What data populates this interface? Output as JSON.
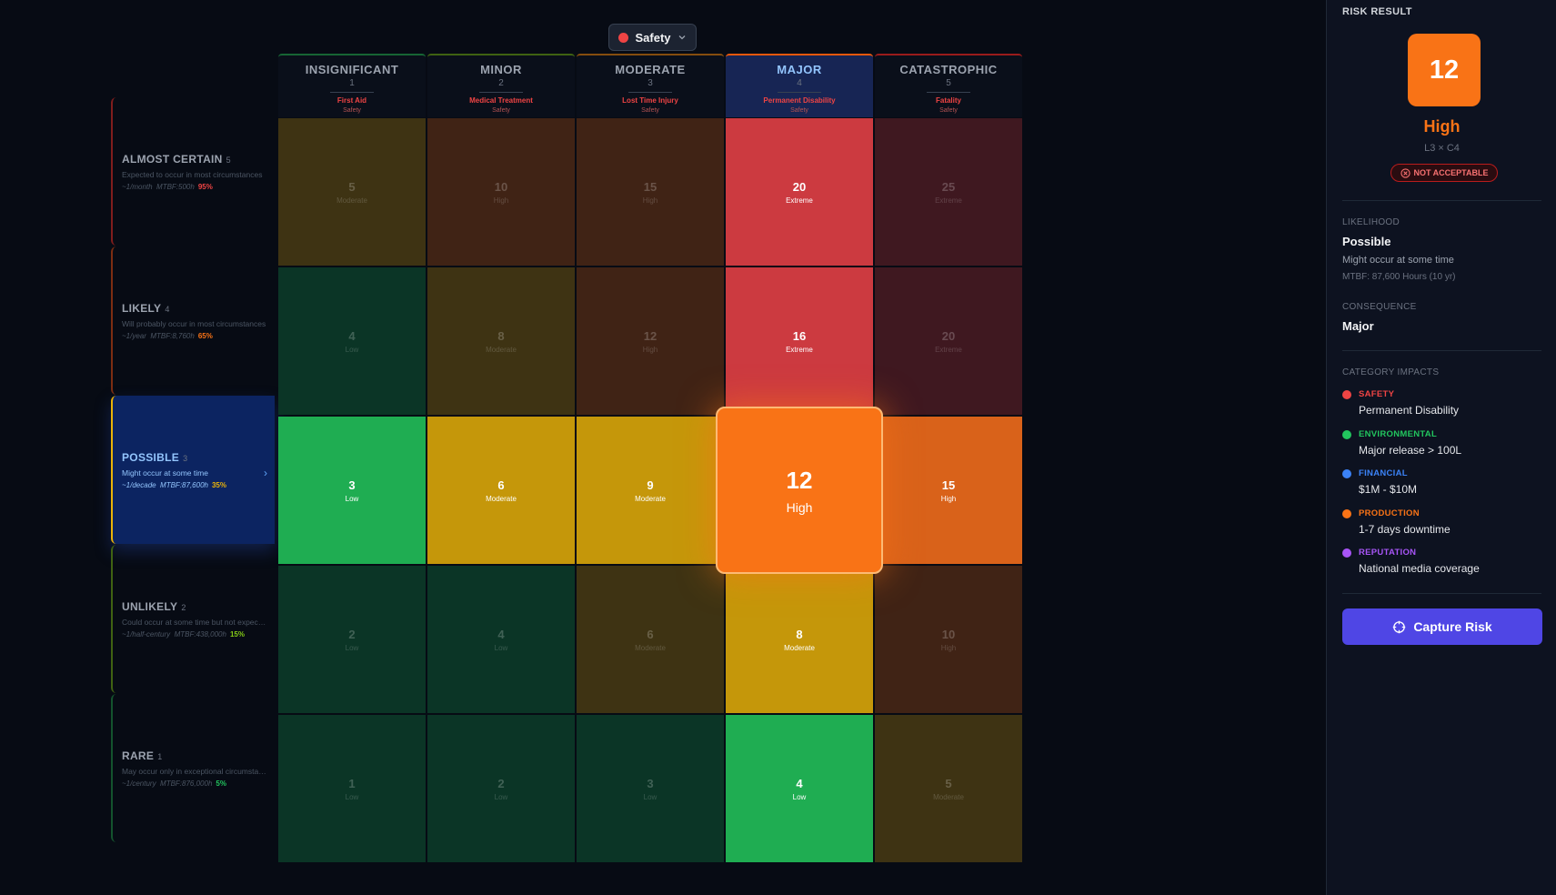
{
  "category_selector": {
    "label": "Safety",
    "color": "#ef4444"
  },
  "columns": [
    {
      "name": "INSIGNIFICANT",
      "score": "1",
      "desc": "First Aid",
      "category": "Safety",
      "color": "#166534",
      "selected": false
    },
    {
      "name": "MINOR",
      "score": "2",
      "desc": "Medical Treatment",
      "category": "Safety",
      "color": "#3f6212",
      "selected": false
    },
    {
      "name": "MODERATE",
      "score": "3",
      "desc": "Lost Time Injury",
      "category": "Safety",
      "color": "#854d0e",
      "selected": false
    },
    {
      "name": "MAJOR",
      "score": "4",
      "desc": "Permanent Disability",
      "category": "Safety",
      "color": "#ea580c",
      "selected": true
    },
    {
      "name": "CATASTROPHIC",
      "score": "5",
      "desc": "Fatality",
      "category": "Safety",
      "color": "#991b1b",
      "selected": false
    }
  ],
  "rows": [
    {
      "name": "ALMOST CERTAIN",
      "score": "5",
      "desc": "Expected to occur in most circumstances",
      "freq": "~1/month",
      "mtbf": "MTBF:500h",
      "prob": "95%",
      "prob_color": "#ef4444",
      "color": "#7f1d1d",
      "selected": false
    },
    {
      "name": "LIKELY",
      "score": "4",
      "desc": "Will probably occur in most circumstances",
      "freq": "~1/year",
      "mtbf": "MTBF:8,760h",
      "prob": "65%",
      "prob_color": "#f97316",
      "color": "#7c2d12",
      "selected": false
    },
    {
      "name": "POSSIBLE",
      "score": "3",
      "desc": "Might occur at some time",
      "freq": "~1/decade",
      "mtbf": "MTBF:87,600h",
      "prob": "35%",
      "prob_color": "#eab308",
      "color": "#eab308",
      "selected": true
    },
    {
      "name": "UNLIKELY",
      "score": "2",
      "desc": "Could occur at some time but not expected",
      "freq": "~1/half-century",
      "mtbf": "MTBF:438,000h",
      "prob": "15%",
      "prob_color": "#84cc16",
      "color": "#3f6212",
      "selected": false
    },
    {
      "name": "RARE",
      "score": "1",
      "desc": "May occur only in exceptional circumstances",
      "freq": "~1/century",
      "mtbf": "MTBF:876,000h",
      "prob": "5%",
      "prob_color": "#22c55e",
      "color": "#14532d",
      "selected": false
    }
  ],
  "risk_colors": {
    "Low": {
      "active": "#1fad52",
      "dim": "#0b3526"
    },
    "Moderate": {
      "active": "#c5970a",
      "dim": "#3e3313"
    },
    "High": {
      "active": "#d9621a",
      "dim": "#402315"
    },
    "Extreme": {
      "active": "#cc3a40",
      "dim": "#3f1820"
    },
    "selected": "#f97316"
  },
  "matrix": [
    [
      {
        "score": "5",
        "level": "Moderate"
      },
      {
        "score": "10",
        "level": "High"
      },
      {
        "score": "15",
        "level": "High"
      },
      {
        "score": "20",
        "level": "Extreme"
      },
      {
        "score": "25",
        "level": "Extreme"
      }
    ],
    [
      {
        "score": "4",
        "level": "Low"
      },
      {
        "score": "8",
        "level": "Moderate"
      },
      {
        "score": "12",
        "level": "High"
      },
      {
        "score": "16",
        "level": "Extreme"
      },
      {
        "score": "20",
        "level": "Extreme"
      }
    ],
    [
      {
        "score": "3",
        "level": "Low"
      },
      {
        "score": "6",
        "level": "Moderate"
      },
      {
        "score": "9",
        "level": "Moderate"
      },
      {
        "score": "12",
        "level": "High"
      },
      {
        "score": "15",
        "level": "High"
      }
    ],
    [
      {
        "score": "2",
        "level": "Low"
      },
      {
        "score": "4",
        "level": "Low"
      },
      {
        "score": "6",
        "level": "Moderate"
      },
      {
        "score": "8",
        "level": "Moderate"
      },
      {
        "score": "10",
        "level": "High"
      }
    ],
    [
      {
        "score": "1",
        "level": "Low"
      },
      {
        "score": "2",
        "level": "Low"
      },
      {
        "score": "3",
        "level": "Low"
      },
      {
        "score": "4",
        "level": "Low"
      },
      {
        "score": "5",
        "level": "Moderate"
      }
    ]
  ],
  "panel": {
    "title": "RISK RESULT",
    "score": "12",
    "level": "High",
    "formula": "L3 × C4",
    "badge": "NOT ACCEPTABLE",
    "likelihood_label": "LIKELIHOOD",
    "likelihood_value": "Possible",
    "likelihood_desc": "Might occur at some time",
    "likelihood_mtbf": "MTBF: 87,600 Hours (10 yr)",
    "consequence_label": "CONSEQUENCE",
    "consequence_value": "Major",
    "impacts_label": "CATEGORY IMPACTS",
    "impacts": [
      {
        "name": "SAFETY",
        "value": "Permanent Disability",
        "color": "#ef4444"
      },
      {
        "name": "ENVIRONMENTAL",
        "value": "Major release > 100L",
        "color": "#22c55e"
      },
      {
        "name": "FINANCIAL",
        "value": "$1M - $10M",
        "color": "#3b82f6"
      },
      {
        "name": "PRODUCTION",
        "value": "1-7 days downtime",
        "color": "#f97316"
      },
      {
        "name": "REPUTATION",
        "value": "National media coverage",
        "color": "#a855f7"
      }
    ],
    "capture_label": "Capture Risk"
  }
}
